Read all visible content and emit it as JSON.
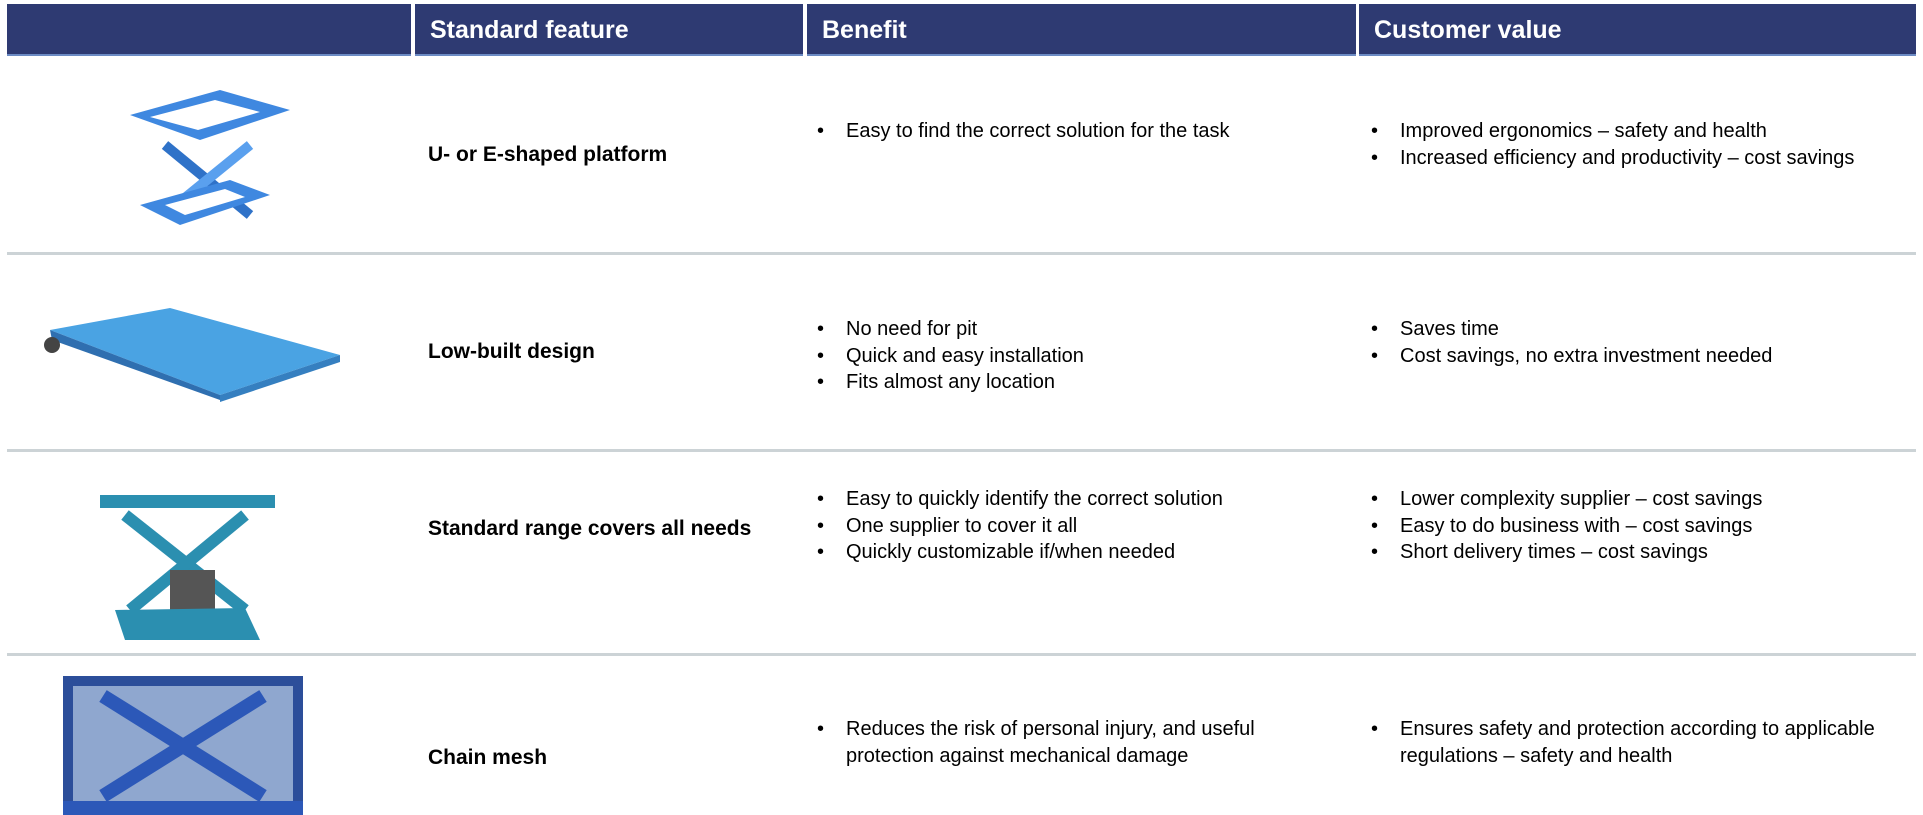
{
  "header": {
    "columns": [
      "Standard feature",
      "Benefit",
      "Customer value"
    ]
  },
  "table": {
    "rows": [
      {
        "feature": "U- or E-shaped platform",
        "benefits": [
          "Easy to find the correct solution for the task"
        ],
        "values": [
          "Improved ergonomics – safety and health",
          "Increased efficiency and productivity – cost savings"
        ]
      },
      {
        "feature": "Low-built design",
        "benefits": [
          "No need for pit",
          "Quick and easy installation",
          "Fits almost any location"
        ],
        "values": [
          "Saves time",
          "Cost savings, no extra investment needed"
        ]
      },
      {
        "feature": "Standard range covers all needs",
        "benefits": [
          "Easy to quickly identify the correct solution",
          "One supplier to cover it all",
          "Quickly customizable if/when needed"
        ],
        "values": [
          "Lower complexity supplier – cost savings",
          "Easy to do business with – cost savings",
          "Short delivery times – cost savings"
        ]
      },
      {
        "feature": "Chain mesh",
        "benefits": [
          "Reduces the risk of personal injury, and useful protection against mechanical damage"
        ],
        "values": [
          "Ensures safety and protection according to applicable regulations – safety and health"
        ]
      }
    ]
  }
}
